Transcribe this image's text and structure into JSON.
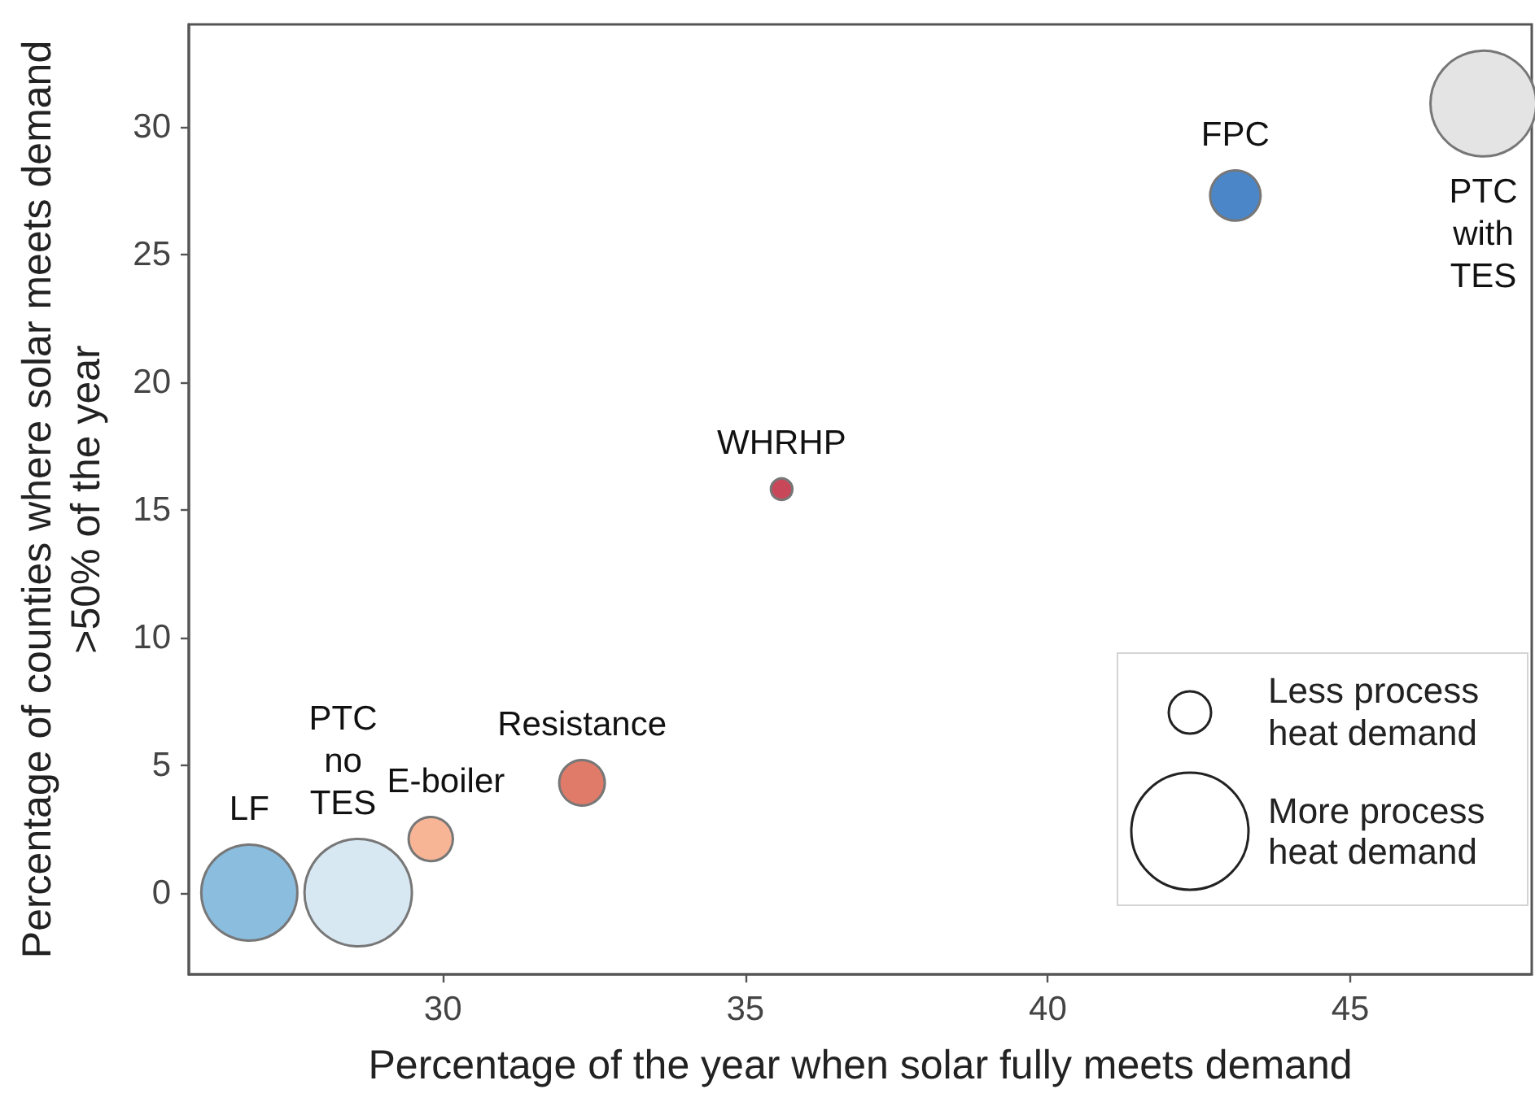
{
  "chart_data": {
    "type": "bubble",
    "xlabel": "Percentage of the year when solar fully meets demand",
    "ylabel": "Percentage of counties where solar meets demand >50% of the year",
    "xlim": [
      25.8,
      48
    ],
    "xticks": [
      30,
      35,
      40,
      45
    ],
    "ylim": [
      -3.2,
      34
    ],
    "yticks": [
      0,
      5,
      10,
      15,
      20,
      25,
      30
    ],
    "marker": "circle",
    "series": [
      {
        "name": "LF",
        "color": "#8bbdde",
        "x": [
          26.8
        ],
        "values": [
          0
        ],
        "sizes": [
          0.8
        ]
      },
      {
        "name": "PTC no TES",
        "color": "#d8e8f3",
        "x": [
          28.6
        ],
        "values": [
          0
        ],
        "sizes": [
          1
        ]
      },
      {
        "name": "E-boiler",
        "color": "#f7b596",
        "x": [
          29.8
        ],
        "values": [
          2.1
        ],
        "sizes": [
          0.17
        ]
      },
      {
        "name": "Resistance",
        "color": "#e17b69",
        "x": [
          32.3
        ],
        "values": [
          4.3
        ],
        "sizes": [
          0.18
        ]
      },
      {
        "name": "WHRHP",
        "color": "#c8485a",
        "x": [
          35.6
        ],
        "values": [
          15.8
        ],
        "sizes": [
          0.04
        ]
      },
      {
        "name": "FPC",
        "color": "#4a86c8",
        "x": [
          43.1
        ],
        "values": [
          27.3
        ],
        "sizes": [
          0.22
        ]
      },
      {
        "name": "PTC with TES",
        "color": "#e4e4e4",
        "x": [
          47.2
        ],
        "values": [
          30.9
        ],
        "sizes": [
          0.97
        ]
      }
    ],
    "annotations": [
      "Less process heat demand",
      "More process heat demand"
    ]
  }
}
